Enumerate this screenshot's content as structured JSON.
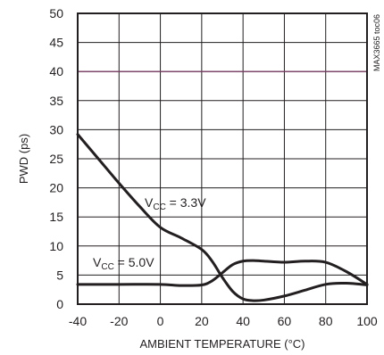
{
  "chart_data": {
    "type": "line",
    "xlabel": "AMBIENT TEMPERATURE (°C)",
    "ylabel": "PWD (ps)",
    "xlim": [
      -40,
      100
    ],
    "ylim": [
      0,
      50
    ],
    "x_ticks": [
      -40,
      -20,
      0,
      20,
      40,
      60,
      80,
      100
    ],
    "x_tick_labels": [
      "-40",
      "-20",
      "0",
      "20",
      "40",
      "60",
      "80",
      "100"
    ],
    "y_ticks": [
      0,
      5,
      10,
      15,
      20,
      25,
      30,
      35,
      40,
      45,
      50
    ],
    "y_tick_labels": [
      "0",
      "5",
      "10",
      "15",
      "20",
      "25",
      "30",
      "35",
      "40",
      "45",
      "50"
    ],
    "grid": true,
    "series": [
      {
        "name": "VCC = 3.3V",
        "label_main": "V",
        "label_sub": "CC",
        "label_rest": " = 3.3V",
        "color": "#231f20",
        "x": [
          -40,
          -30,
          -20,
          -10,
          0,
          10,
          20,
          25,
          30,
          35,
          40,
          45,
          50,
          60,
          70,
          80,
          90,
          100
        ],
        "y": [
          29.2,
          25.0,
          20.8,
          16.8,
          13.2,
          11.4,
          9.4,
          7.4,
          4.6,
          2.2,
          0.9,
          0.6,
          0.7,
          1.4,
          2.4,
          3.4,
          3.6,
          3.3
        ]
      },
      {
        "name": "VCC = 5.0V",
        "label_main": "V",
        "label_sub": "CC",
        "label_rest": " = 5.0V",
        "color": "#231f20",
        "x": [
          -40,
          -20,
          0,
          10,
          20,
          25,
          30,
          35,
          40,
          45,
          50,
          60,
          70,
          80,
          90,
          100
        ],
        "y": [
          3.4,
          3.4,
          3.4,
          3.2,
          3.3,
          4.0,
          5.4,
          6.8,
          7.4,
          7.5,
          7.4,
          7.2,
          7.4,
          7.2,
          5.6,
          3.4
        ]
      }
    ],
    "reference_line": {
      "y": 40,
      "color": "#7b3f66"
    },
    "watermark": "MAX3665 toc06"
  }
}
